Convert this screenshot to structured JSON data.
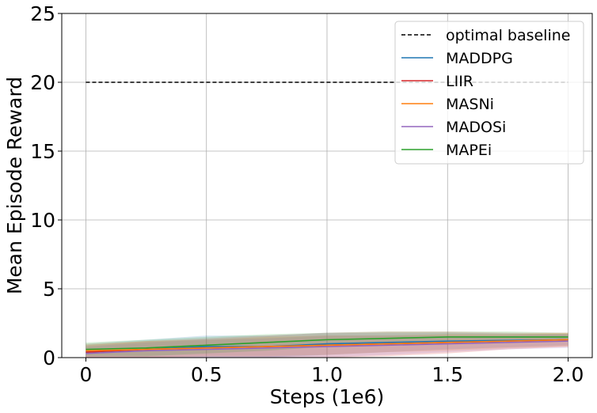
{
  "chart_data": {
    "type": "line",
    "title": "",
    "xlabel": "Steps (1e6)",
    "ylabel": "Mean Episode Reward",
    "xlim": [
      -0.1,
      2.1
    ],
    "ylim": [
      0,
      25
    ],
    "xticks": [
      0,
      0.5,
      1.0,
      1.5,
      2.0
    ],
    "xtick_labels": [
      "0",
      "0.5",
      "1.0",
      "1.5",
      "2.0"
    ],
    "yticks": [
      0,
      5,
      10,
      15,
      20,
      25
    ],
    "ytick_labels": [
      "0",
      "5",
      "10",
      "15",
      "20",
      "25"
    ],
    "grid": true,
    "legend_position": "top-right",
    "series": [
      {
        "name": "optimal baseline",
        "color": "#000000",
        "style": "dashed",
        "x": [
          0,
          2.0
        ],
        "y": [
          20,
          20
        ]
      },
      {
        "name": "MADDPG",
        "color": "#1f77b4",
        "style": "solid",
        "x": [
          0,
          0.25,
          0.5,
          0.75,
          1.0,
          1.25,
          1.5,
          1.75,
          2.0
        ],
        "y": [
          0.4,
          0.6,
          0.8,
          0.8,
          1.0,
          1.1,
          1.2,
          1.25,
          1.3
        ],
        "band": [
          0.6,
          0.7,
          0.8,
          0.8,
          0.8,
          0.7,
          0.6,
          0.5,
          0.4
        ]
      },
      {
        "name": "LIIR",
        "color": "#d62728",
        "style": "solid",
        "x": [
          0,
          0.25,
          0.5,
          0.75,
          1.0,
          1.25,
          1.5,
          1.75,
          2.0
        ],
        "y": [
          0.4,
          0.6,
          0.7,
          0.8,
          0.9,
          1.0,
          1.1,
          1.2,
          1.3
        ],
        "band": [
          0.5,
          0.6,
          0.7,
          0.8,
          0.9,
          0.9,
          0.8,
          0.6,
          0.5
        ]
      },
      {
        "name": "MASNi",
        "color": "#ff7f0e",
        "style": "solid",
        "x": [
          0,
          0.25,
          0.5,
          0.75,
          1.0,
          1.25,
          1.5,
          1.75,
          2.0
        ],
        "y": [
          0.5,
          0.6,
          0.7,
          0.8,
          0.9,
          1.0,
          1.1,
          1.2,
          1.3
        ],
        "band": [
          0.5,
          0.6,
          0.6,
          0.7,
          0.7,
          0.6,
          0.6,
          0.5,
          0.5
        ]
      },
      {
        "name": "MADOSi",
        "color": "#9467bd",
        "style": "solid",
        "x": [
          0,
          0.25,
          0.5,
          0.75,
          1.0,
          1.25,
          1.5,
          1.75,
          2.0
        ],
        "y": [
          0.3,
          0.5,
          0.6,
          0.7,
          0.8,
          0.9,
          1.0,
          1.1,
          1.2
        ],
        "band": [
          0.5,
          0.6,
          0.7,
          0.7,
          0.8,
          0.7,
          0.6,
          0.5,
          0.5
        ]
      },
      {
        "name": "MAPEi",
        "color": "#2ca02c",
        "style": "solid",
        "x": [
          0,
          0.25,
          0.5,
          0.75,
          1.0,
          1.25,
          1.5,
          1.75,
          2.0
        ],
        "y": [
          0.6,
          0.7,
          0.9,
          1.1,
          1.3,
          1.4,
          1.5,
          1.5,
          1.5
        ],
        "band": [
          0.5,
          0.6,
          0.6,
          0.6,
          0.5,
          0.5,
          0.4,
          0.4,
          0.3
        ]
      }
    ]
  }
}
